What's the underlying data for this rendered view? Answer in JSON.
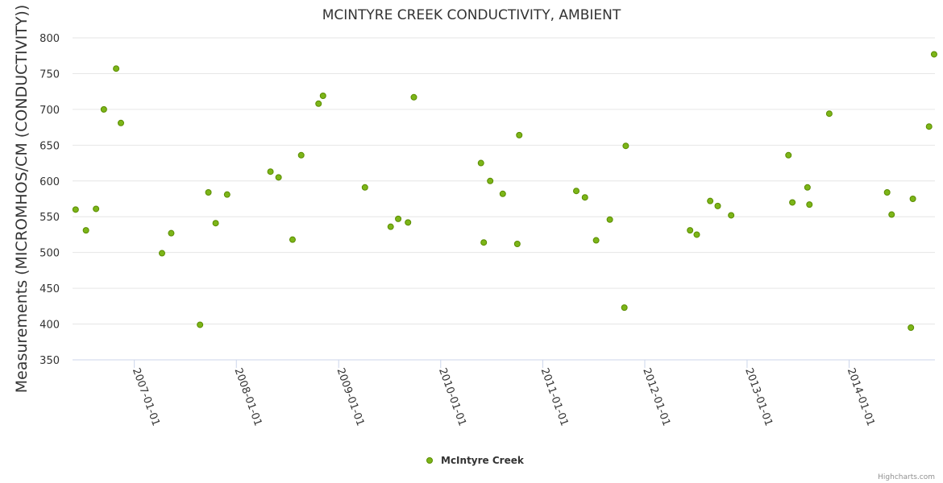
{
  "chart_data": {
    "type": "scatter",
    "title": "MCINTYRE CREEK CONDUCTIVITY, AMBIENT",
    "ylabel": "Measurements (MICROMHOS/CM (CONDUCTIVITY))",
    "xlabel": "",
    "ylim": [
      350,
      800
    ],
    "yticks": [
      350,
      400,
      450,
      500,
      550,
      600,
      650,
      700,
      750,
      800
    ],
    "xlim": [
      "2006-05-25",
      "2014-11-04"
    ],
    "xticks": [
      "2007-01-01",
      "2008-01-01",
      "2009-01-01",
      "2010-01-01",
      "2011-01-01",
      "2012-01-01",
      "2013-01-01",
      "2014-01-01"
    ],
    "grid": "horizontal",
    "legend": "bottom-center",
    "series": [
      {
        "name": "McIntyre Creek",
        "color": "#7cb518",
        "points": [
          [
            "2006-06-05",
            560
          ],
          [
            "2006-07-12",
            531
          ],
          [
            "2006-08-17",
            561
          ],
          [
            "2006-09-14",
            700
          ],
          [
            "2006-10-28",
            757
          ],
          [
            "2006-11-14",
            681
          ],
          [
            "2007-04-10",
            499
          ],
          [
            "2007-05-13",
            527
          ],
          [
            "2007-08-24",
            399
          ],
          [
            "2007-09-23",
            584
          ],
          [
            "2007-10-19",
            541
          ],
          [
            "2007-11-29",
            581
          ],
          [
            "2008-05-02",
            613
          ],
          [
            "2008-05-31",
            605
          ],
          [
            "2008-07-20",
            518
          ],
          [
            "2008-08-20",
            636
          ],
          [
            "2008-10-21",
            708
          ],
          [
            "2008-11-06",
            719
          ],
          [
            "2009-04-05",
            591
          ],
          [
            "2009-07-06",
            536
          ],
          [
            "2009-08-02",
            547
          ],
          [
            "2009-09-06",
            542
          ],
          [
            "2009-09-27",
            717
          ],
          [
            "2010-05-25",
            625
          ],
          [
            "2010-06-04",
            514
          ],
          [
            "2010-06-27",
            600
          ],
          [
            "2010-08-11",
            582
          ],
          [
            "2010-10-02",
            512
          ],
          [
            "2010-10-09",
            664
          ],
          [
            "2011-05-01",
            586
          ],
          [
            "2011-06-01",
            577
          ],
          [
            "2011-07-11",
            517
          ],
          [
            "2011-08-29",
            546
          ],
          [
            "2011-10-20",
            423
          ],
          [
            "2011-10-25",
            649
          ],
          [
            "2012-06-11",
            531
          ],
          [
            "2012-07-05",
            525
          ],
          [
            "2012-08-22",
            572
          ],
          [
            "2012-09-18",
            565
          ],
          [
            "2012-11-05",
            552
          ],
          [
            "2013-05-29",
            636
          ],
          [
            "2013-06-12",
            570
          ],
          [
            "2013-08-05",
            591
          ],
          [
            "2013-08-12",
            567
          ],
          [
            "2013-10-22",
            694
          ],
          [
            "2014-05-17",
            584
          ],
          [
            "2014-06-02",
            553
          ],
          [
            "2014-08-10",
            395
          ],
          [
            "2014-08-17",
            575
          ],
          [
            "2014-10-14",
            676
          ],
          [
            "2014-11-01",
            777
          ]
        ]
      }
    ]
  },
  "credit": "Highcharts.com"
}
